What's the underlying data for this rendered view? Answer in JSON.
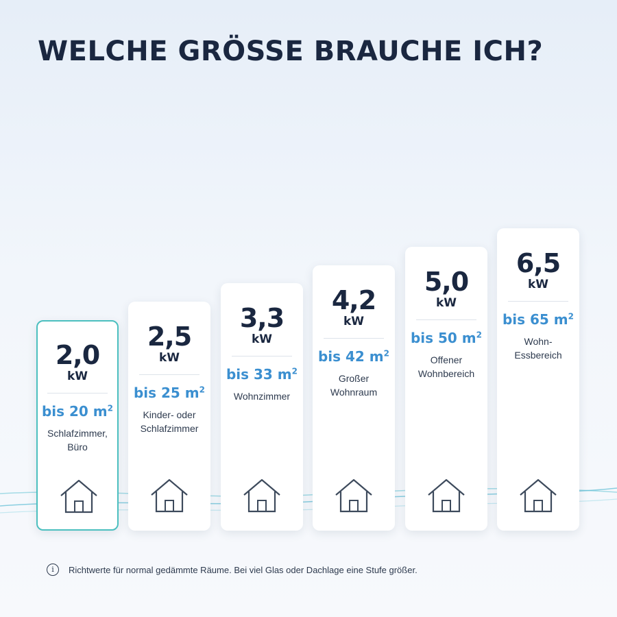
{
  "title": "WELCHE GRÖSSE BRAUCHE ICH?",
  "options": [
    {
      "kw": "2,0",
      "unit": "kW",
      "area": "bis 20 m",
      "area_sup": "2",
      "room": "Schlafzimmer, Büro",
      "selected": true
    },
    {
      "kw": "2,5",
      "unit": "kW",
      "area": "bis 25 m",
      "area_sup": "2",
      "room": "Kinder- oder Schlafzimmer",
      "selected": false
    },
    {
      "kw": "3,3",
      "unit": "kW",
      "area": "bis 33 m",
      "area_sup": "2",
      "room": "Wohnzimmer",
      "selected": false
    },
    {
      "kw": "4,2",
      "unit": "kW",
      "area": "bis 42 m",
      "area_sup": "2",
      "room": "Großer Wohnraum",
      "selected": false
    },
    {
      "kw": "5,0",
      "unit": "kW",
      "area": "bis 50 m",
      "area_sup": "2",
      "room": "Offener Wohnbereich",
      "selected": false
    },
    {
      "kw": "6,5",
      "unit": "kW",
      "area": "bis 65 m",
      "area_sup": "2",
      "room": "Wohn-Essbereich",
      "selected": false
    }
  ],
  "note": {
    "icon": "info-icon",
    "text": "Richtwerte für normal gedämmte Räume. Bei viel Glas oder Dachlage eine Stufe größer."
  },
  "colors": {
    "heading": "#1a2740",
    "accent_blue": "#3b8fd0",
    "selected_border": "#4bbfbf"
  }
}
